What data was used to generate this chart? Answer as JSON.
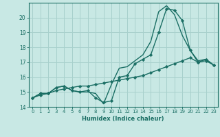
{
  "xlabel": "Humidex (Indice chaleur)",
  "xlim": [
    -0.5,
    23.5
  ],
  "ylim": [
    14,
    21
  ],
  "yticks": [
    14,
    15,
    16,
    17,
    18,
    19,
    20
  ],
  "xticks": [
    0,
    1,
    2,
    3,
    4,
    5,
    6,
    7,
    8,
    9,
    10,
    11,
    12,
    13,
    14,
    15,
    16,
    17,
    18,
    19,
    20,
    21,
    22,
    23
  ],
  "background_color": "#c8e8e4",
  "grid_color": "#a8d0cc",
  "line_color": "#1a6e64",
  "series": [
    {
      "x": [
        0,
        1,
        2,
        3,
        4,
        5,
        6,
        7,
        8,
        9,
        10,
        11,
        12,
        13,
        14,
        15,
        16,
        17,
        18,
        19,
        20,
        21,
        22,
        23
      ],
      "y": [
        14.6,
        14.9,
        14.9,
        15.3,
        15.4,
        15.1,
        15.0,
        15.1,
        14.6,
        14.3,
        14.4,
        16.0,
        16.1,
        16.9,
        17.2,
        17.5,
        19.0,
        20.6,
        20.5,
        19.8,
        17.8,
        17.0,
        17.2,
        16.8
      ],
      "marker": "D",
      "linewidth": 1.0
    },
    {
      "x": [
        0,
        1,
        2,
        3,
        4,
        5,
        6,
        7,
        8,
        9,
        10,
        11,
        12,
        13,
        14,
        15,
        16,
        17,
        18,
        19,
        20,
        21,
        22,
        23
      ],
      "y": [
        14.6,
        14.9,
        14.9,
        15.3,
        15.4,
        15.1,
        15.0,
        15.0,
        14.9,
        14.2,
        15.5,
        16.6,
        16.7,
        17.1,
        17.5,
        18.4,
        20.4,
        20.8,
        20.2,
        18.8,
        17.8,
        17.1,
        17.2,
        16.8
      ],
      "marker": null,
      "linewidth": 1.0
    },
    {
      "x": [
        0,
        1,
        2,
        3,
        4,
        5,
        6,
        7,
        8,
        9,
        10,
        11,
        12,
        13,
        14,
        15,
        16,
        17,
        18,
        19,
        20,
        21,
        22,
        23
      ],
      "y": [
        14.6,
        14.8,
        14.9,
        15.1,
        15.2,
        15.3,
        15.4,
        15.4,
        15.5,
        15.6,
        15.7,
        15.8,
        15.9,
        16.0,
        16.1,
        16.3,
        16.5,
        16.7,
        16.9,
        17.1,
        17.3,
        17.0,
        17.1,
        16.8
      ],
      "marker": "D",
      "linewidth": 1.0
    }
  ]
}
